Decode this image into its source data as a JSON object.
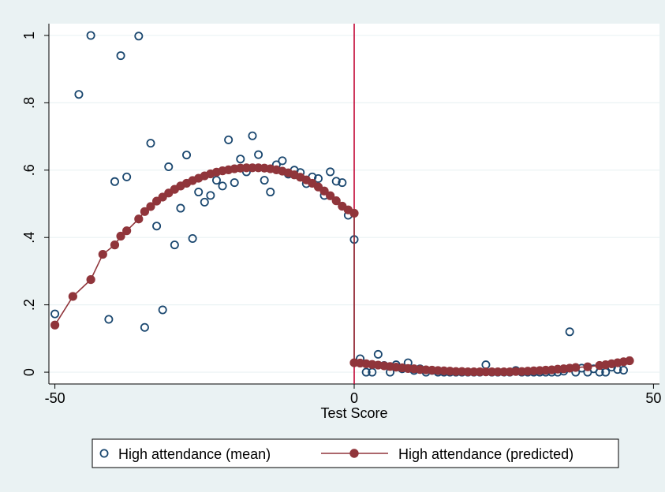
{
  "chart_data": {
    "type": "scatter",
    "title": "",
    "xlabel": "Test Score",
    "ylabel": "",
    "xlim": [
      -51,
      51
    ],
    "ylim": [
      -0.035,
      1.035
    ],
    "x_ticks": [
      -50,
      0,
      50
    ],
    "x_tick_labels": [
      "-50",
      "0",
      "50"
    ],
    "y_ticks": [
      0,
      0.2,
      0.4,
      0.6,
      0.8,
      1
    ],
    "y_tick_labels": [
      "0",
      ".2",
      ".4",
      ".6",
      ".8",
      "1"
    ],
    "grid": true,
    "legend_position": "bottom",
    "cutoff_x": 0,
    "colors": {
      "background": "#eaf2f3",
      "plot_area": "#ffffff",
      "mean_marker": "#1a476f",
      "predicted": "#90353b",
      "cutoff": "#c10534",
      "grid": "#eaf2f3"
    },
    "series": [
      {
        "name": "High attendance (mean)",
        "style": "hollow-circle",
        "points": [
          [
            -50,
            0.173
          ],
          [
            -46,
            0.825
          ],
          [
            -44,
            1.0
          ],
          [
            -41,
            0.157
          ],
          [
            -40,
            0.566
          ],
          [
            -39,
            0.94
          ],
          [
            -38,
            0.58
          ],
          [
            -36,
            0.998
          ],
          [
            -35,
            0.133
          ],
          [
            -34,
            0.68
          ],
          [
            -33,
            0.434
          ],
          [
            -32,
            0.185
          ],
          [
            -31,
            0.61
          ],
          [
            -30,
            0.378
          ],
          [
            -29,
            0.487
          ],
          [
            -28,
            0.645
          ],
          [
            -27,
            0.397
          ],
          [
            -26,
            0.535
          ],
          [
            -25,
            0.505
          ],
          [
            -24,
            0.525
          ],
          [
            -23,
            0.57
          ],
          [
            -22,
            0.553
          ],
          [
            -21,
            0.69
          ],
          [
            -20,
            0.563
          ],
          [
            -19,
            0.633
          ],
          [
            -18,
            0.595
          ],
          [
            -17,
            0.702
          ],
          [
            -16,
            0.646
          ],
          [
            -15,
            0.57
          ],
          [
            -14,
            0.535
          ],
          [
            -13,
            0.616
          ],
          [
            -12,
            0.628
          ],
          [
            -11,
            0.588
          ],
          [
            -10,
            0.6
          ],
          [
            -9,
            0.593
          ],
          [
            -8,
            0.56
          ],
          [
            -7,
            0.58
          ],
          [
            -6,
            0.575
          ],
          [
            -5,
            0.525
          ],
          [
            -4,
            0.595
          ],
          [
            -3,
            0.567
          ],
          [
            -2,
            0.563
          ],
          [
            -1,
            0.466
          ],
          [
            0,
            0.394
          ],
          [
            1,
            0.04
          ],
          [
            2,
            0.0
          ],
          [
            3,
            0.0
          ],
          [
            4,
            0.053
          ],
          [
            5,
            0.02
          ],
          [
            6,
            0.0
          ],
          [
            7,
            0.022
          ],
          [
            8,
            0.01
          ],
          [
            9,
            0.028
          ],
          [
            10,
            0.005
          ],
          [
            11,
            0.01
          ],
          [
            12,
            0.0
          ],
          [
            13,
            0.005
          ],
          [
            14,
            0.0
          ],
          [
            15,
            0.0
          ],
          [
            16,
            0.0
          ],
          [
            17,
            0.0
          ],
          [
            18,
            0.0
          ],
          [
            19,
            0.0
          ],
          [
            20,
            0.0
          ],
          [
            21,
            0.0
          ],
          [
            22,
            0.022
          ],
          [
            23,
            0.0
          ],
          [
            24,
            0.0
          ],
          [
            25,
            0.0
          ],
          [
            26,
            0.0
          ],
          [
            27,
            0.005
          ],
          [
            28,
            0.0
          ],
          [
            29,
            0.0
          ],
          [
            30,
            0.0
          ],
          [
            31,
            0.0
          ],
          [
            32,
            0.0
          ],
          [
            33,
            0.0
          ],
          [
            34,
            0.0
          ],
          [
            35,
            0.003
          ],
          [
            36,
            0.12
          ],
          [
            37,
            0.0
          ],
          [
            38,
            0.012
          ],
          [
            39,
            0.0
          ],
          [
            40,
            0.01
          ],
          [
            41,
            0.0
          ],
          [
            42,
            0.0
          ],
          [
            43,
            0.015
          ],
          [
            44,
            0.008
          ],
          [
            45,
            0.006
          ]
        ]
      },
      {
        "name": "High attendance (predicted)",
        "style": "line-with-filled-circles",
        "points": [
          [
            -50,
            0.14
          ],
          [
            -47,
            0.225
          ],
          [
            -44,
            0.275
          ],
          [
            -42,
            0.35
          ],
          [
            -40,
            0.378
          ],
          [
            -39,
            0.404
          ],
          [
            -38,
            0.42
          ],
          [
            -36,
            0.455
          ],
          [
            -35,
            0.477
          ],
          [
            -34,
            0.492
          ],
          [
            -33,
            0.508
          ],
          [
            -32,
            0.52
          ],
          [
            -31,
            0.532
          ],
          [
            -30,
            0.543
          ],
          [
            -29,
            0.553
          ],
          [
            -28,
            0.561
          ],
          [
            -27,
            0.569
          ],
          [
            -26,
            0.576
          ],
          [
            -25,
            0.583
          ],
          [
            -24,
            0.589
          ],
          [
            -23,
            0.594
          ],
          [
            -22,
            0.598
          ],
          [
            -21,
            0.601
          ],
          [
            -20,
            0.604
          ],
          [
            -19,
            0.606
          ],
          [
            -18,
            0.607
          ],
          [
            -17,
            0.607
          ],
          [
            -16,
            0.607
          ],
          [
            -15,
            0.606
          ],
          [
            -14,
            0.604
          ],
          [
            -13,
            0.601
          ],
          [
            -12,
            0.597
          ],
          [
            -11,
            0.592
          ],
          [
            -10,
            0.586
          ],
          [
            -9,
            0.579
          ],
          [
            -8,
            0.571
          ],
          [
            -7,
            0.561
          ],
          [
            -6,
            0.55
          ],
          [
            -5,
            0.538
          ],
          [
            -4,
            0.524
          ],
          [
            -3,
            0.509
          ],
          [
            -2,
            0.493
          ],
          [
            -1,
            0.482
          ],
          [
            0,
            0.472
          ],
          [
            0,
            0.028
          ],
          [
            1,
            0.027
          ],
          [
            2,
            0.025
          ],
          [
            3,
            0.023
          ],
          [
            4,
            0.021
          ],
          [
            5,
            0.019
          ],
          [
            6,
            0.017
          ],
          [
            7,
            0.015
          ],
          [
            8,
            0.013
          ],
          [
            9,
            0.011
          ],
          [
            10,
            0.01
          ],
          [
            11,
            0.008
          ],
          [
            12,
            0.007
          ],
          [
            13,
            0.006
          ],
          [
            14,
            0.005
          ],
          [
            15,
            0.004
          ],
          [
            16,
            0.003
          ],
          [
            17,
            0.002
          ],
          [
            18,
            0.002
          ],
          [
            19,
            0.001
          ],
          [
            20,
            0.001
          ],
          [
            21,
            0.001
          ],
          [
            22,
            0.001
          ],
          [
            23,
            0.001
          ],
          [
            24,
            0.001
          ],
          [
            25,
            0.001
          ],
          [
            26,
            0.001
          ],
          [
            27,
            0.002
          ],
          [
            28,
            0.002
          ],
          [
            29,
            0.003
          ],
          [
            30,
            0.004
          ],
          [
            31,
            0.005
          ],
          [
            32,
            0.006
          ],
          [
            33,
            0.007
          ],
          [
            34,
            0.009
          ],
          [
            35,
            0.01
          ],
          [
            36,
            0.012
          ],
          [
            37,
            0.014
          ],
          [
            39,
            0.016
          ],
          [
            41,
            0.02
          ],
          [
            42,
            0.022
          ],
          [
            43,
            0.025
          ],
          [
            44,
            0.028
          ],
          [
            45,
            0.031
          ],
          [
            46,
            0.034
          ]
        ]
      }
    ]
  }
}
